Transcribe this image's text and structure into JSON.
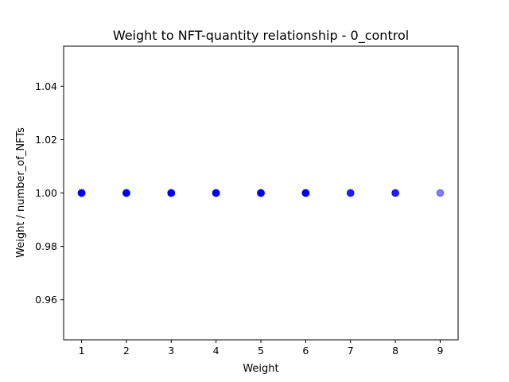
{
  "chart_data": {
    "type": "scatter",
    "title": "Weight to NFT-quantity relationship - 0_control",
    "xlabel": "Weight",
    "ylabel": "Weight / number_of_NFTs",
    "xlim": [
      0.6,
      9.4
    ],
    "ylim": [
      0.945,
      1.055
    ],
    "xticks": [
      "1",
      "2",
      "3",
      "4",
      "5",
      "6",
      "7",
      "8",
      "9"
    ],
    "yticks": [
      "0.96",
      "0.98",
      "1.00",
      "1.02",
      "1.04"
    ],
    "grid": false,
    "legend": "none",
    "marker_color": "#0000ff",
    "marker_alpha": 0.5,
    "series": [
      {
        "x": [
          1,
          1,
          1,
          1,
          1,
          1,
          1,
          1,
          2,
          2,
          2,
          2,
          2,
          2,
          2,
          2,
          3,
          3,
          3,
          3,
          3,
          3,
          3,
          3,
          4,
          4,
          4,
          4,
          4,
          4,
          4,
          4,
          5,
          5,
          5,
          5,
          5,
          5,
          5,
          5,
          6,
          6,
          6,
          6,
          6,
          6,
          6,
          6,
          7,
          7,
          7,
          8,
          8,
          8,
          9
        ],
        "y": [
          1,
          1,
          1,
          1,
          1,
          1,
          1,
          1,
          1,
          1,
          1,
          1,
          1,
          1,
          1,
          1,
          1,
          1,
          1,
          1,
          1,
          1,
          1,
          1,
          1,
          1,
          1,
          1,
          1,
          1,
          1,
          1,
          1,
          1,
          1,
          1,
          1,
          1,
          1,
          1,
          1,
          1,
          1,
          1,
          1,
          1,
          1,
          1,
          1,
          1,
          1,
          1,
          1,
          1,
          1
        ]
      }
    ]
  }
}
